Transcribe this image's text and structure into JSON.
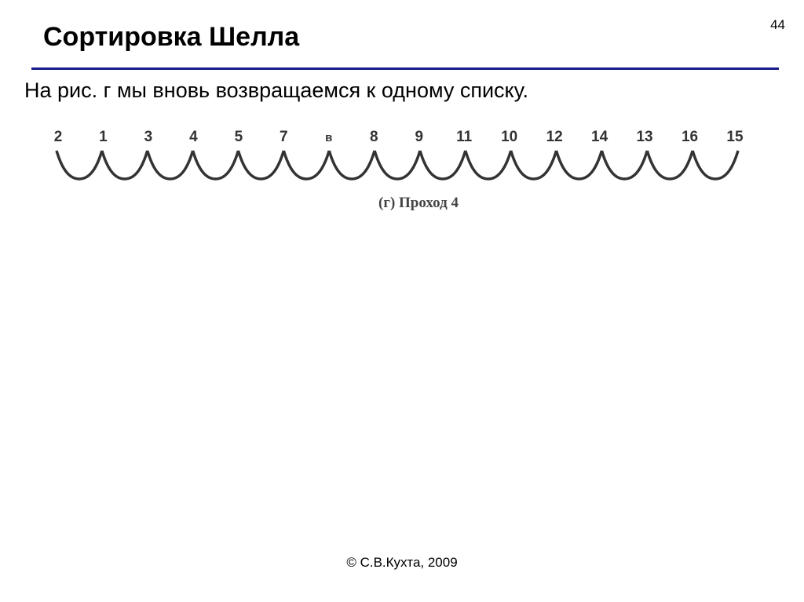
{
  "slide_number": "44",
  "title": "Сортировка Шелла",
  "body_text": "На рис. г мы вновь возвращаемся к одному списку.",
  "figure": {
    "labels": [
      "2",
      "1",
      "3",
      "4",
      "5",
      "7",
      "в",
      "8",
      "9",
      "11",
      "10",
      "12",
      "14",
      "13",
      "16",
      "15"
    ],
    "caption": "(г) Проход 4",
    "arcs": 15
  },
  "footer": "© С.В.Кухта, 2009"
}
